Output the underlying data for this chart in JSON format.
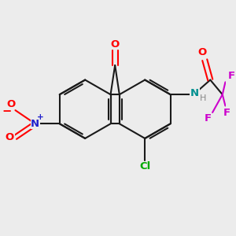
{
  "bg_color": "#ececec",
  "bond_color": "#1a1a1a",
  "lw": 1.5,
  "dbo": 0.12,
  "atom_colors": {
    "O": "#ff0000",
    "N_nitro": "#2222cc",
    "N_amide": "#009090",
    "Cl": "#00aa00",
    "F": "#cc00cc",
    "H": "#888888",
    "plus": "#2222cc",
    "minus": "#ff0000"
  },
  "fs": 9.5,
  "fss": 8.0,
  "fsc": 7.5
}
